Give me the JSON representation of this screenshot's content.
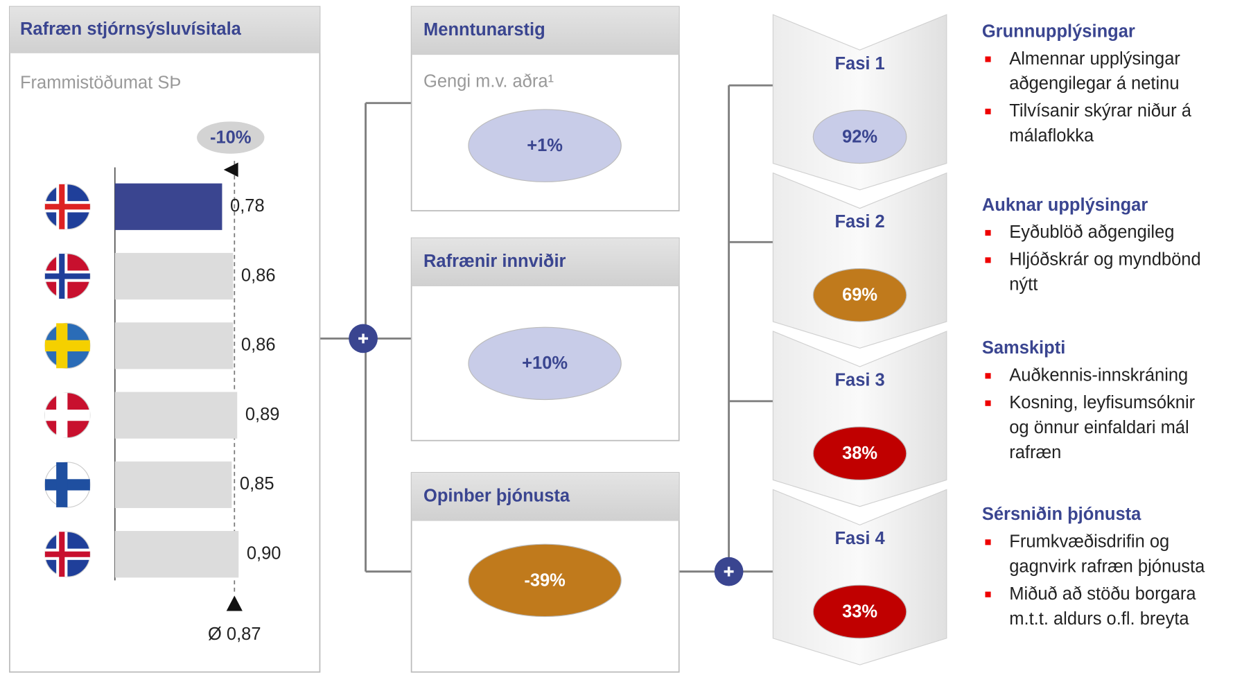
{
  "index_panel": {
    "title": "Rafræn stjórnsýsluvísitala",
    "subtitle": "Frammistöðumat SÞ",
    "gap_label": "-10%",
    "values": [
      0.78,
      0.86,
      0.86,
      0.89,
      0.85,
      0.9
    ],
    "value_labels": [
      "0,78",
      "0,86",
      "0,86",
      "0,89",
      "0,85",
      "0,90"
    ],
    "average": 0.87,
    "average_label": "Ø 0,87"
  },
  "factors": [
    {
      "title": "Menntunarstig",
      "subtitle": "Gengi m.v. aðra¹",
      "value_label": "+1%"
    },
    {
      "title": "Rafrænir innviðir",
      "value_label": "+10%"
    },
    {
      "title": "Opinber þjónusta",
      "value_label": "-39%"
    }
  ],
  "phases": [
    {
      "label": "Fasi 1",
      "value_label": "92%"
    },
    {
      "label": "Fasi 2",
      "value_label": "69%"
    },
    {
      "label": "Fasi 3",
      "value_label": "38%"
    },
    {
      "label": "Fasi 4",
      "value_label": "33%"
    }
  ],
  "descriptions": [
    {
      "heading": "Grunnupplýsingar",
      "items": [
        [
          "Almennar upplýsingar",
          "aðgengilegar á netinu"
        ],
        [
          "Tilvísanir skýrar niður á",
          "málaflokka"
        ]
      ]
    },
    {
      "heading": "Auknar upplýsingar",
      "items": [
        [
          "Eyðublöð aðgengileg"
        ],
        [
          "Hljóðskrár og myndbönd",
          "nýtt"
        ]
      ]
    },
    {
      "heading": "Samskipti",
      "items": [
        [
          "Auðkennis-innskráning"
        ],
        [
          "Kosning, leyfisumsóknir",
          "og önnur einfaldari mál",
          "rafræn"
        ]
      ]
    },
    {
      "heading": "Sérsniðin þjónusta",
      "items": [
        [
          "Frumkvæðisdrifin og",
          "gagnvirk rafræn þjónusta"
        ],
        [
          "Miðuð að stöðu borgara",
          "m.t.t. aldurs o.fl. breyta"
        ]
      ]
    }
  ]
}
